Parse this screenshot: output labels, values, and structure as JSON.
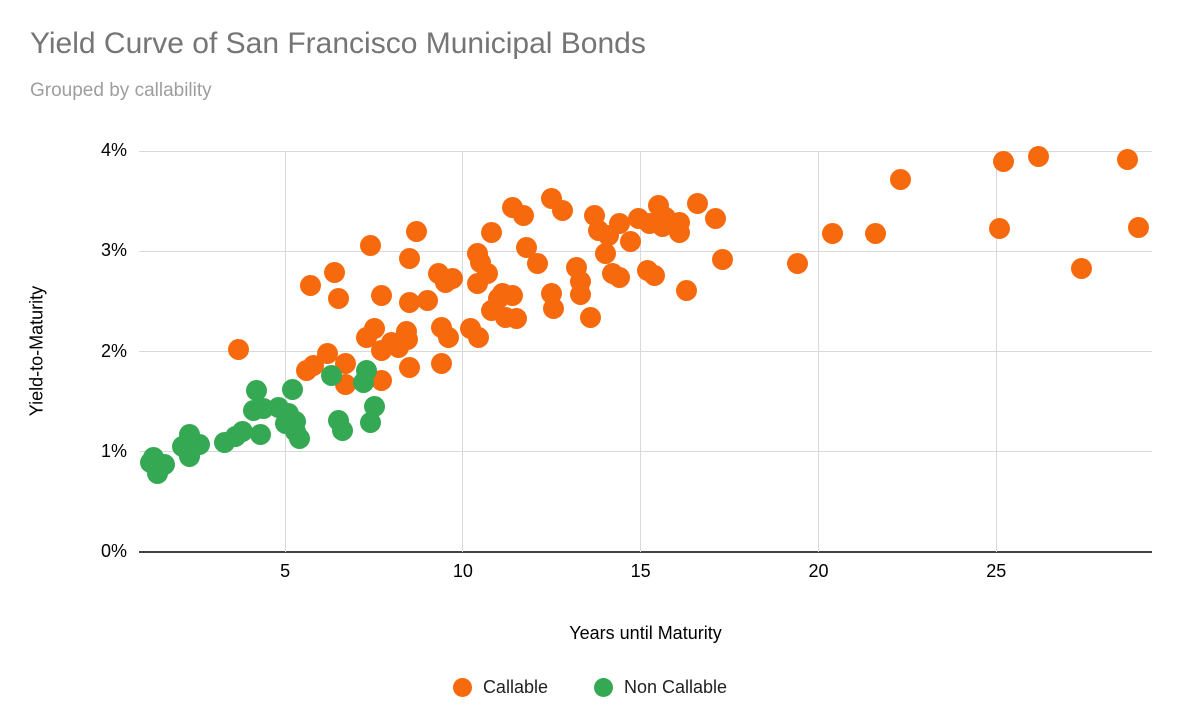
{
  "title": "Yield Curve of San Francisco Municipal Bonds",
  "subtitle": "Grouped by callability",
  "colors": {
    "callable": "#F6690D",
    "non_callable": "#34A853",
    "title_gray": "#757575",
    "subtitle_gray": "#9E9E9E",
    "gridline": "#D9D9D9",
    "axis_baseline": "#424242"
  },
  "chart_data": {
    "type": "scatter",
    "title": "Yield Curve of San Francisco Municipal Bonds",
    "subtitle": "Grouped by callability",
    "xlabel": "Years until Maturity",
    "ylabel": "Yield-to-Maturity",
    "xlim": [
      0.89,
      29.38
    ],
    "ylim": [
      0,
      4
    ],
    "grid": true,
    "legend_position": "bottom",
    "x_ticks": [
      {
        "v": 5,
        "label": "5"
      },
      {
        "v": 10,
        "label": "10"
      },
      {
        "v": 15,
        "label": "15"
      },
      {
        "v": 20,
        "label": "20"
      },
      {
        "v": 25,
        "label": "25"
      }
    ],
    "y_ticks": [
      {
        "v": 0,
        "label": "0%"
      },
      {
        "v": 1,
        "label": "1%"
      },
      {
        "v": 2,
        "label": "2%"
      },
      {
        "v": 3,
        "label": "3%"
      },
      {
        "v": 4,
        "label": "4%"
      }
    ],
    "series": [
      {
        "name": "Callable",
        "color": "#F6690D",
        "points": [
          [
            3.7,
            2.02
          ],
          [
            5.6,
            1.81
          ],
          [
            5.7,
            2.66
          ],
          [
            5.8,
            1.86
          ],
          [
            6.2,
            1.98
          ],
          [
            6.4,
            2.79
          ],
          [
            6.5,
            2.53
          ],
          [
            6.7,
            1.88
          ],
          [
            6.7,
            1.67
          ],
          [
            7.3,
            2.14
          ],
          [
            7.4,
            3.06
          ],
          [
            7.5,
            2.23
          ],
          [
            7.7,
            1.71
          ],
          [
            7.7,
            2.01
          ],
          [
            7.7,
            2.56
          ],
          [
            8.0,
            2.09
          ],
          [
            8.2,
            2.04
          ],
          [
            8.4,
            2.2
          ],
          [
            8.45,
            2.12
          ],
          [
            8.5,
            1.84
          ],
          [
            8.5,
            2.49
          ],
          [
            8.5,
            2.93
          ],
          [
            8.7,
            3.2
          ],
          [
            9.0,
            2.51
          ],
          [
            9.3,
            2.78
          ],
          [
            9.4,
            1.88
          ],
          [
            9.4,
            2.24
          ],
          [
            9.5,
            2.69
          ],
          [
            9.6,
            2.14
          ],
          [
            9.7,
            2.73
          ],
          [
            10.2,
            2.23
          ],
          [
            10.4,
            2.68
          ],
          [
            10.4,
            2.98
          ],
          [
            10.45,
            2.14
          ],
          [
            10.5,
            2.89
          ],
          [
            10.7,
            2.78
          ],
          [
            10.8,
            2.41
          ],
          [
            10.8,
            3.19
          ],
          [
            11.0,
            2.53
          ],
          [
            11.1,
            2.58
          ],
          [
            11.2,
            2.34
          ],
          [
            11.4,
            2.56
          ],
          [
            11.4,
            3.44
          ],
          [
            11.5,
            2.33
          ],
          [
            11.7,
            3.36
          ],
          [
            11.8,
            3.04
          ],
          [
            12.1,
            2.88
          ],
          [
            12.5,
            2.58
          ],
          [
            12.5,
            3.53
          ],
          [
            12.55,
            2.43
          ],
          [
            12.8,
            3.41
          ],
          [
            13.2,
            2.84
          ],
          [
            13.3,
            2.57
          ],
          [
            13.3,
            2.7
          ],
          [
            13.6,
            2.34
          ],
          [
            13.7,
            3.36
          ],
          [
            13.8,
            3.21
          ],
          [
            14.0,
            2.98
          ],
          [
            14.1,
            3.16
          ],
          [
            14.2,
            2.78
          ],
          [
            14.4,
            2.74
          ],
          [
            14.4,
            3.28
          ],
          [
            14.7,
            3.1
          ],
          [
            14.95,
            3.33
          ],
          [
            15.2,
            2.81
          ],
          [
            15.25,
            3.28
          ],
          [
            15.4,
            2.76
          ],
          [
            15.5,
            3.46
          ],
          [
            15.6,
            3.25
          ],
          [
            15.7,
            3.34
          ],
          [
            16.1,
            3.19
          ],
          [
            16.1,
            3.29
          ],
          [
            16.3,
            2.61
          ],
          [
            16.6,
            3.48
          ],
          [
            17.1,
            3.33
          ],
          [
            17.3,
            2.92
          ],
          [
            19.4,
            2.88
          ],
          [
            20.4,
            3.18
          ],
          [
            21.6,
            3.18
          ],
          [
            22.3,
            3.72
          ],
          [
            25.1,
            3.23
          ],
          [
            25.2,
            3.9
          ],
          [
            26.2,
            3.95
          ],
          [
            27.4,
            2.83
          ],
          [
            28.7,
            3.92
          ],
          [
            29.0,
            3.24
          ]
        ]
      },
      {
        "name": "Non Callable",
        "color": "#34A853",
        "points": [
          [
            1.2,
            0.89
          ],
          [
            1.3,
            0.94
          ],
          [
            1.4,
            0.78
          ],
          [
            1.6,
            0.87
          ],
          [
            2.1,
            1.05
          ],
          [
            2.3,
            0.95
          ],
          [
            2.3,
            1.17
          ],
          [
            2.6,
            1.07
          ],
          [
            3.3,
            1.09
          ],
          [
            3.6,
            1.15
          ],
          [
            3.8,
            1.2
          ],
          [
            4.1,
            1.41
          ],
          [
            4.2,
            1.61
          ],
          [
            4.3,
            1.17
          ],
          [
            4.4,
            1.43
          ],
          [
            4.8,
            1.44
          ],
          [
            5.0,
            1.28
          ],
          [
            5.1,
            1.38
          ],
          [
            5.2,
            1.62
          ],
          [
            5.3,
            1.2
          ],
          [
            5.3,
            1.3
          ],
          [
            5.4,
            1.13
          ],
          [
            6.3,
            1.76
          ],
          [
            6.5,
            1.31
          ],
          [
            6.6,
            1.21
          ],
          [
            7.2,
            1.69
          ],
          [
            7.3,
            1.81
          ],
          [
            7.4,
            1.29
          ],
          [
            7.5,
            1.45
          ]
        ]
      }
    ]
  }
}
